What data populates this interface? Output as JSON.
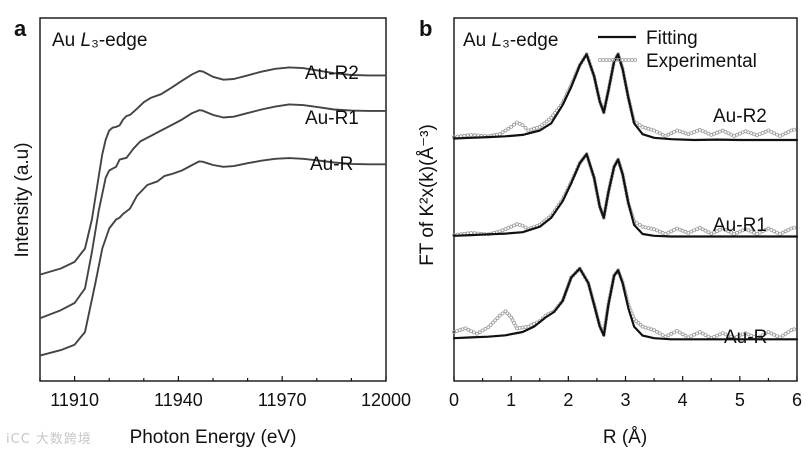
{
  "watermark": "iCC 大数跨境",
  "chart_data": [
    {
      "type": "line",
      "panel_letter": "a",
      "title": "Au L₃-edge",
      "xlabel": "Photon Energy (eV)",
      "ylabel": "Intensity (a.u)",
      "xlim": [
        11900,
        12000
      ],
      "ylim": [
        0,
        1
      ],
      "xticks": [
        11910,
        11940,
        11970,
        12000
      ],
      "yticks_shown": false,
      "grid": false,
      "series": [
        {
          "name": "Au-R2",
          "color": "#444444",
          "x": [
            11900,
            11906,
            11910,
            11913,
            11915,
            11917,
            11918,
            11919,
            11920,
            11921,
            11922,
            11923,
            11924,
            11925,
            11926,
            11928,
            11930,
            11932,
            11935,
            11938,
            11941,
            11944,
            11946,
            11947,
            11950,
            11953,
            11956,
            11960,
            11964,
            11968,
            11972,
            11976,
            11980,
            11985,
            11990,
            11995,
            12000
          ],
          "y": [
            0.293,
            0.31,
            0.328,
            0.365,
            0.445,
            0.565,
            0.625,
            0.665,
            0.69,
            0.698,
            0.7,
            0.704,
            0.72,
            0.73,
            0.733,
            0.75,
            0.768,
            0.78,
            0.79,
            0.808,
            0.827,
            0.845,
            0.854,
            0.853,
            0.838,
            0.83,
            0.832,
            0.842,
            0.852,
            0.86,
            0.864,
            0.862,
            0.856,
            0.848,
            0.843,
            0.842,
            0.842
          ]
        },
        {
          "name": "Au-R1",
          "color": "#444444",
          "x": [
            11900,
            11906,
            11910,
            11913,
            11915,
            11917,
            11919,
            11920,
            11921,
            11922,
            11923,
            11925,
            11927,
            11929,
            11932,
            11935,
            11938,
            11941,
            11944,
            11946,
            11947,
            11950,
            11953,
            11956,
            11960,
            11964,
            11968,
            11972,
            11976,
            11980,
            11985,
            11990,
            11995,
            12000
          ],
          "y": [
            0.173,
            0.195,
            0.215,
            0.255,
            0.355,
            0.47,
            0.56,
            0.58,
            0.585,
            0.59,
            0.61,
            0.615,
            0.64,
            0.66,
            0.675,
            0.69,
            0.705,
            0.72,
            0.738,
            0.746,
            0.745,
            0.733,
            0.726,
            0.728,
            0.738,
            0.748,
            0.756,
            0.762,
            0.76,
            0.755,
            0.748,
            0.745,
            0.744,
            0.744
          ]
        },
        {
          "name": "Au-R",
          "color": "#444444",
          "x": [
            11900,
            11906,
            11910,
            11913,
            11916,
            11918,
            11920,
            11922,
            11923,
            11924,
            11926,
            11928,
            11931,
            11934,
            11936,
            11938,
            11941,
            11944,
            11946,
            11947,
            11950,
            11953,
            11956,
            11960,
            11964,
            11968,
            11972,
            11976,
            11980,
            11985,
            11990,
            11995,
            12000
          ],
          "y": [
            0.07,
            0.085,
            0.1,
            0.135,
            0.27,
            0.365,
            0.42,
            0.445,
            0.45,
            0.46,
            0.475,
            0.51,
            0.54,
            0.55,
            0.565,
            0.57,
            0.58,
            0.595,
            0.605,
            0.604,
            0.595,
            0.59,
            0.592,
            0.6,
            0.607,
            0.612,
            0.614,
            0.612,
            0.608,
            0.602,
            0.598,
            0.597,
            0.597
          ]
        }
      ]
    },
    {
      "type": "line",
      "panel_letter": "b",
      "title": "Au L₃-edge",
      "xlabel": "R (Å)",
      "ylabel": "FT of K²x(k)(Å⁻³)",
      "xlim": [
        0,
        6
      ],
      "ylim": [
        0,
        1
      ],
      "xticks": [
        0,
        1,
        2,
        3,
        4,
        5,
        6
      ],
      "yticks_shown": false,
      "grid": false,
      "legend": {
        "position": "top-right",
        "entries": [
          {
            "name": "Fitting",
            "style": "line"
          },
          {
            "name": "Experimental",
            "style": "circles"
          }
        ]
      },
      "groups": [
        {
          "name": "Au-R2",
          "fitting": {
            "x": [
              0,
              0.3,
              0.6,
              0.9,
              1.2,
              1.5,
              1.7,
              1.9,
              2.05,
              2.2,
              2.32,
              2.45,
              2.55,
              2.62,
              2.7,
              2.8,
              2.87,
              2.95,
              3.05,
              3.15,
              3.3,
              3.5,
              3.8,
              4.2,
              4.6,
              5.0,
              5.4,
              5.8,
              6.0
            ],
            "y": [
              0.668,
              0.67,
              0.672,
              0.674,
              0.678,
              0.69,
              0.71,
              0.76,
              0.81,
              0.87,
              0.9,
              0.84,
              0.77,
              0.74,
              0.8,
              0.88,
              0.9,
              0.86,
              0.78,
              0.71,
              0.68,
              0.67,
              0.666,
              0.664,
              0.665,
              0.664,
              0.664,
              0.664,
              0.664
            ]
          },
          "experimental": {
            "x": [
              0,
              0.3,
              0.6,
              0.8,
              1.0,
              1.1,
              1.2,
              1.3,
              1.5,
              1.7,
              1.9,
              2.05,
              2.2,
              2.32,
              2.45,
              2.55,
              2.62,
              2.7,
              2.8,
              2.87,
              2.95,
              3.05,
              3.15,
              3.3,
              3.5,
              3.7,
              3.9,
              4.1,
              4.3,
              4.5,
              4.7,
              4.9,
              5.1,
              5.3,
              5.5,
              5.7,
              5.9,
              6.0
            ],
            "y": [
              0.672,
              0.678,
              0.674,
              0.68,
              0.7,
              0.712,
              0.705,
              0.69,
              0.7,
              0.725,
              0.765,
              0.815,
              0.87,
              0.9,
              0.84,
              0.77,
              0.74,
              0.8,
              0.88,
              0.9,
              0.86,
              0.78,
              0.715,
              0.7,
              0.69,
              0.675,
              0.69,
              0.68,
              0.692,
              0.678,
              0.69,
              0.675,
              0.688,
              0.677,
              0.69,
              0.675,
              0.69,
              0.695
            ]
          }
        },
        {
          "name": "Au-R1",
          "fitting": {
            "x": [
              0,
              0.3,
              0.6,
              0.9,
              1.2,
              1.5,
              1.7,
              1.9,
              2.05,
              2.2,
              2.32,
              2.45,
              2.55,
              2.62,
              2.7,
              2.8,
              2.87,
              2.95,
              3.05,
              3.15,
              3.3,
              3.5,
              3.8,
              4.2,
              4.6,
              5.0,
              5.4,
              5.8,
              6.0
            ],
            "y": [
              0.4,
              0.402,
              0.404,
              0.406,
              0.41,
              0.425,
              0.45,
              0.495,
              0.545,
              0.6,
              0.625,
              0.56,
              0.48,
              0.45,
              0.52,
              0.59,
              0.61,
              0.57,
              0.49,
              0.43,
              0.405,
              0.4,
              0.398,
              0.398,
              0.398,
              0.398,
              0.398,
              0.398,
              0.398
            ]
          },
          "experimental": {
            "x": [
              0,
              0.3,
              0.6,
              0.8,
              1.0,
              1.1,
              1.2,
              1.3,
              1.5,
              1.7,
              1.9,
              2.05,
              2.2,
              2.32,
              2.45,
              2.55,
              2.62,
              2.7,
              2.8,
              2.87,
              2.95,
              3.05,
              3.15,
              3.3,
              3.5,
              3.7,
              3.9,
              4.1,
              4.3,
              4.5,
              4.7,
              4.9,
              5.1,
              5.3,
              5.5,
              5.7,
              5.9,
              6.0
            ],
            "y": [
              0.402,
              0.408,
              0.404,
              0.412,
              0.425,
              0.432,
              0.428,
              0.418,
              0.43,
              0.455,
              0.5,
              0.548,
              0.6,
              0.625,
              0.56,
              0.48,
              0.45,
              0.52,
              0.59,
              0.61,
              0.57,
              0.49,
              0.44,
              0.425,
              0.418,
              0.405,
              0.42,
              0.408,
              0.422,
              0.406,
              0.42,
              0.405,
              0.418,
              0.405,
              0.42,
              0.405,
              0.42,
              0.425
            ]
          }
        },
        {
          "name": "Au-R",
          "fitting": {
            "x": [
              0,
              0.3,
              0.6,
              0.9,
              1.2,
              1.4,
              1.6,
              1.75,
              1.9,
              2.05,
              2.2,
              2.35,
              2.45,
              2.55,
              2.62,
              2.7,
              2.8,
              2.87,
              2.95,
              3.05,
              3.15,
              3.3,
              3.5,
              3.8,
              4.2,
              4.6,
              5.0,
              5.4,
              5.8,
              6.0
            ],
            "y": [
              0.118,
              0.12,
              0.122,
              0.126,
              0.135,
              0.15,
              0.175,
              0.19,
              0.22,
              0.285,
              0.31,
              0.27,
              0.21,
              0.15,
              0.125,
              0.21,
              0.29,
              0.305,
              0.27,
              0.2,
              0.15,
              0.125,
              0.118,
              0.115,
              0.115,
              0.115,
              0.115,
              0.115,
              0.115,
              0.115
            ]
          },
          "experimental": {
            "x": [
              0,
              0.2,
              0.4,
              0.6,
              0.8,
              0.9,
              1.0,
              1.1,
              1.3,
              1.5,
              1.6,
              1.75,
              1.9,
              2.05,
              2.2,
              2.35,
              2.45,
              2.55,
              2.62,
              2.7,
              2.8,
              2.87,
              2.95,
              3.05,
              3.15,
              3.3,
              3.5,
              3.7,
              3.9,
              4.1,
              4.3,
              4.5,
              4.7,
              4.9,
              5.1,
              5.3,
              5.5,
              5.7,
              5.9,
              6.0
            ],
            "y": [
              0.135,
              0.145,
              0.13,
              0.148,
              0.18,
              0.192,
              0.175,
              0.145,
              0.15,
              0.165,
              0.18,
              0.192,
              0.222,
              0.285,
              0.31,
              0.27,
              0.212,
              0.152,
              0.128,
              0.212,
              0.29,
              0.305,
              0.272,
              0.21,
              0.17,
              0.15,
              0.14,
              0.122,
              0.138,
              0.12,
              0.135,
              0.118,
              0.132,
              0.118,
              0.132,
              0.118,
              0.135,
              0.12,
              0.14,
              0.145
            ]
          }
        }
      ]
    }
  ]
}
